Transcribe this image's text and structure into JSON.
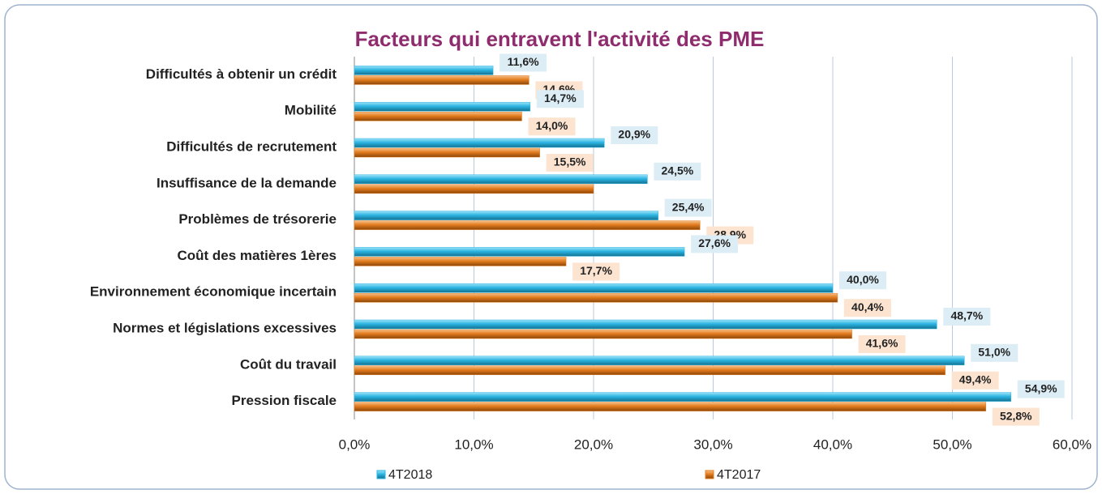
{
  "chart_data": {
    "type": "hbar",
    "title": "Facteurs qui entravent l'activité des PME",
    "categories": [
      "Difficultés à obtenir un crédit",
      "Mobilité",
      "Difficultés de recrutement",
      "Insuffisance de la demande",
      "Problèmes de trésorerie",
      "Coût des matières 1ères",
      "Environnement économique incertain",
      "Normes et législations excessives",
      "Coût du travail",
      "Pression fiscale"
    ],
    "series": [
      {
        "name": "4T2018",
        "color": "#2bb5e3",
        "values": [
          11.6,
          14.7,
          20.9,
          24.5,
          25.4,
          27.6,
          40.0,
          48.7,
          51.0,
          54.9
        ],
        "value_labels": [
          "11,6%",
          "14,7%",
          "20,9%",
          "24,5%",
          "25,4%",
          "27,6%",
          "40,0%",
          "48,7%",
          "51,0%",
          "54,9%"
        ]
      },
      {
        "name": "4T2017",
        "color": "#e37c1e",
        "values": [
          14.6,
          14.0,
          15.5,
          20.0,
          28.9,
          17.7,
          40.4,
          41.6,
          49.4,
          52.8
        ],
        "value_labels": [
          "14,6%",
          "14,0%",
          "15,5%",
          null,
          "28,9%",
          "17,7%",
          "40,4%",
          "41,6%",
          "49,4%",
          "52,8%"
        ]
      }
    ],
    "xlim": [
      0,
      60
    ],
    "xticks": [
      {
        "value": 0,
        "label": "0,0%"
      },
      {
        "value": 10,
        "label": "10,0%"
      },
      {
        "value": 20,
        "label": "20,0%"
      },
      {
        "value": 30,
        "label": "30,0%"
      },
      {
        "value": 40,
        "label": "40,0%"
      },
      {
        "value": 50,
        "label": "50,0%"
      },
      {
        "value": 60,
        "label": "60,0%"
      }
    ],
    "grid": true
  }
}
